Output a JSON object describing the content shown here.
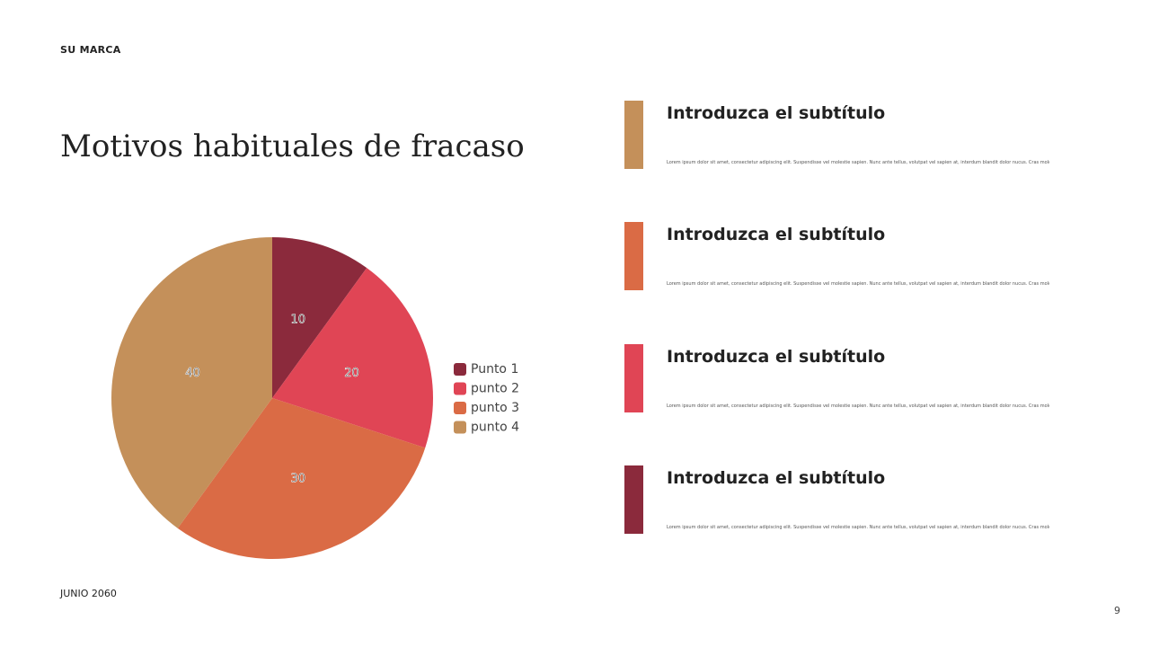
{
  "brand": "SU MARCA",
  "title": "Motivos habituales de fracaso",
  "footer": {
    "date": "JUNIO 2060",
    "page": "9"
  },
  "items": [
    {
      "subtitle": "Introduzca el subtítulo",
      "body": "Lorem ipsum dolor sit amet, consectetur adipiscing elit. Suspendisse vel molestie sapien. Nunc ante tellus, volutpat vel sapien at, interdum blandit dolor nucus. Cras molestie",
      "color": "#C4905A"
    },
    {
      "subtitle": "Introduzca el subtítulo",
      "body": "Lorem ipsum dolor sit amet, consectetur adipiscing elit. Suspendisse vel molestie sapien. Nunc ante tellus, volutpat vel sapien at, interdum blandit dolor nucus. Cras molestie",
      "color": "#DA6B45"
    },
    {
      "subtitle": "Introduzca el subtítulo",
      "body": "Lorem ipsum dolor sit amet, consectetur adipiscing elit. Suspendisse vel molestie sapien. Nunc ante tellus, volutpat vel sapien at, interdum blandit dolor nucus. Cras molestie",
      "color": "#E04555"
    },
    {
      "subtitle": "Introduzca el subtítulo",
      "body": "Lorem ipsum dolor sit amet, consectetur adipiscing elit. Suspendisse vel molestie sapien. Nunc ante tellus, volutpat vel sapien at, interdum blandit dolor nucus. Cras molestie",
      "color": "#8B2A3C"
    }
  ],
  "chart_data": {
    "type": "pie",
    "categories": [
      "Punto 1",
      "punto 2",
      "punto 3",
      "punto 4"
    ],
    "values": [
      10,
      20,
      30,
      40
    ],
    "colors": [
      "#8B2A3C",
      "#E04555",
      "#DA6B45",
      "#C4905A"
    ],
    "data_labels": true,
    "legend": "right"
  }
}
